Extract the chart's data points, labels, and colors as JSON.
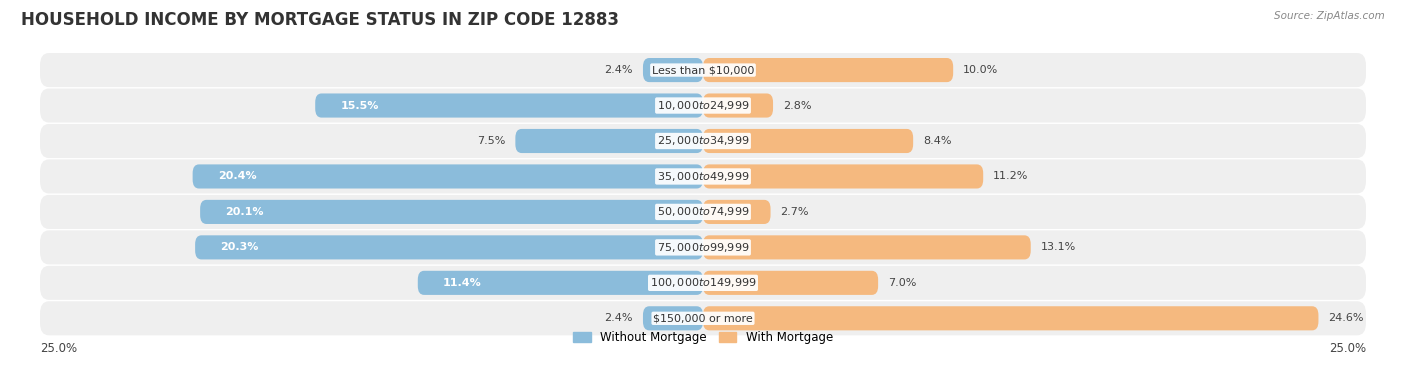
{
  "title": "HOUSEHOLD INCOME BY MORTGAGE STATUS IN ZIP CODE 12883",
  "source": "Source: ZipAtlas.com",
  "categories": [
    "Less than $10,000",
    "$10,000 to $24,999",
    "$25,000 to $34,999",
    "$35,000 to $49,999",
    "$50,000 to $74,999",
    "$75,000 to $99,999",
    "$100,000 to $149,999",
    "$150,000 or more"
  ],
  "without_mortgage": [
    2.4,
    15.5,
    7.5,
    20.4,
    20.1,
    20.3,
    11.4,
    2.4
  ],
  "with_mortgage": [
    10.0,
    2.8,
    8.4,
    11.2,
    2.7,
    13.1,
    7.0,
    24.6
  ],
  "color_without": "#8bbcdb",
  "color_with": "#f5b97f",
  "xlim": 25.0,
  "legend_without": "Without Mortgage",
  "legend_with": "With Mortgage",
  "title_fontsize": 12,
  "label_fontsize": 8.0,
  "value_fontsize": 8.0,
  "bg_color": "#ffffff",
  "row_bg": "#efefef"
}
